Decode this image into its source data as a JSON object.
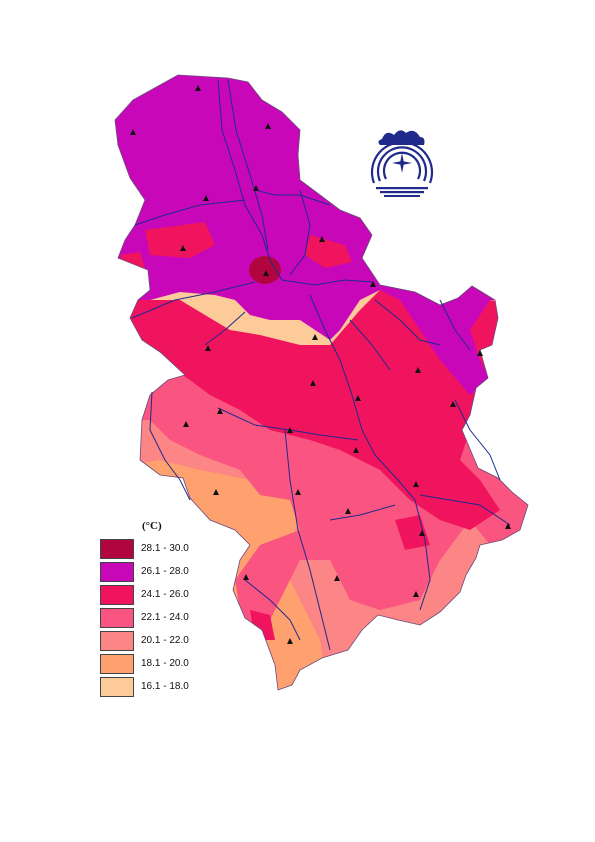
{
  "legend": {
    "title": "(°C)",
    "classes": [
      {
        "label": "28.1 - 30.0",
        "color": "#b0053e"
      },
      {
        "label": "26.1 - 28.0",
        "color": "#c808b8"
      },
      {
        "label": "24.1 - 26.0",
        "color": "#f0145e"
      },
      {
        "label": "22.1 - 24.0",
        "color": "#fa5480"
      },
      {
        "label": "20.1 - 22.0",
        "color": "#fc8585"
      },
      {
        "label": "18.1 - 20.0",
        "color": "#fea16f"
      },
      {
        "label": "16.1 - 18.0",
        "color": "#fdcb99"
      }
    ]
  },
  "map": {
    "river_color": "#1f2a8a",
    "border_color": "#6a4a7a",
    "station_marker": "triangle-icon",
    "logo": "hydrometeorological-service-logo"
  }
}
